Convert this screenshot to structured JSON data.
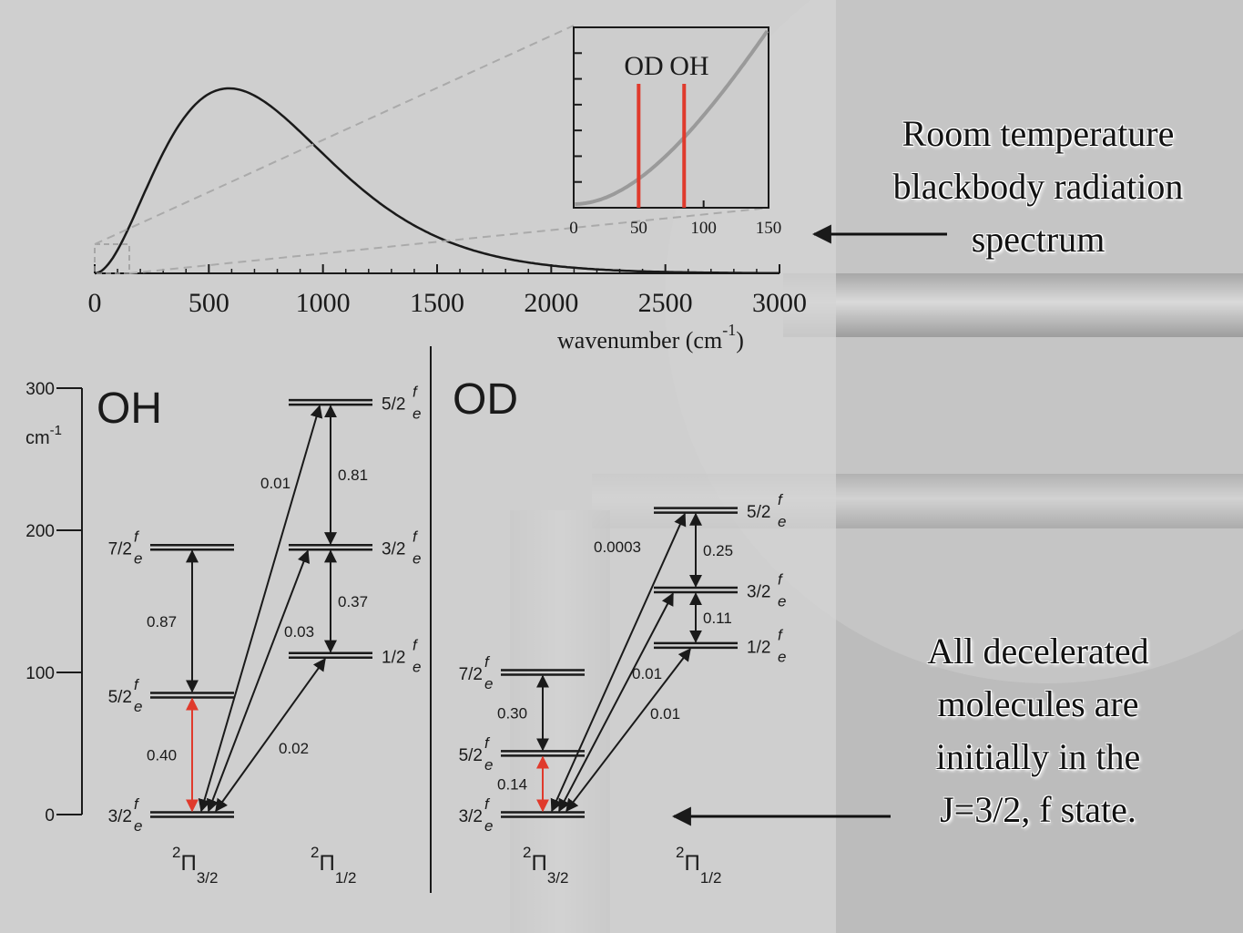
{
  "annotations": {
    "top_lines": [
      "Room temperature",
      "blackbody radiation",
      "spectrum"
    ],
    "bottom_lines": [
      "All decelerated",
      "molecules are",
      "initially in the",
      "J=3/2, f state."
    ]
  },
  "colors": {
    "curve": "#1a1a1a",
    "red": "#e03a2c",
    "panel_bg": "#c9c9c9",
    "inset_curve": "#9a9a9a"
  },
  "spectrum": {
    "x_ticks": [
      "0",
      "500",
      "1000",
      "1500",
      "2000",
      "2500",
      "3000"
    ],
    "x_label": "wavenumber (cm",
    "x_label_exp": "-1",
    "x_label_close": ")",
    "inset": {
      "x_ticks": [
        "0",
        "50",
        "100",
        "150"
      ],
      "markers": [
        {
          "label": "OD",
          "x": 50
        },
        {
          "label": "OH",
          "x": 85
        }
      ]
    }
  },
  "energy_axis": {
    "ticks": [
      "300",
      "200",
      "100",
      "0"
    ],
    "unit": "cm",
    "unit_exp": "-1"
  },
  "oh": {
    "title": "OH",
    "levels": [
      {
        "J": "3/2",
        "energy": 0,
        "column": "3/2"
      },
      {
        "J": "5/2",
        "energy": 84,
        "column": "3/2"
      },
      {
        "J": "7/2",
        "energy": 188,
        "column": "3/2"
      },
      {
        "J": "1/2",
        "energy": 112,
        "column": "1/2"
      },
      {
        "J": "3/2",
        "energy": 188,
        "column": "1/2"
      },
      {
        "J": "5/2",
        "energy": 290,
        "column": "1/2"
      }
    ],
    "rates": [
      "0.87",
      "0.40",
      "0.01",
      "0.81",
      "0.37",
      "0.03",
      "0.02"
    ],
    "columns": [
      "3/2",
      "1/2"
    ]
  },
  "od": {
    "title": "OD",
    "levels": [
      {
        "J": "3/2",
        "energy": 0,
        "column": "3/2"
      },
      {
        "J": "5/2",
        "energy": 43,
        "column": "3/2"
      },
      {
        "J": "7/2",
        "energy": 100,
        "column": "3/2"
      },
      {
        "J": "1/2",
        "energy": 119,
        "column": "1/2"
      },
      {
        "J": "3/2",
        "energy": 158,
        "column": "1/2"
      },
      {
        "J": "5/2",
        "energy": 214,
        "column": "1/2"
      }
    ],
    "rates": [
      "0.30",
      "0.14",
      "0.0003",
      "0.25",
      "0.11",
      "0.01",
      "0.01"
    ],
    "columns": [
      "3/2",
      "1/2"
    ]
  },
  "term_symbols": {
    "superscript": "2",
    "letter": "Π"
  },
  "parity_f": "f",
  "parity_e": "e"
}
